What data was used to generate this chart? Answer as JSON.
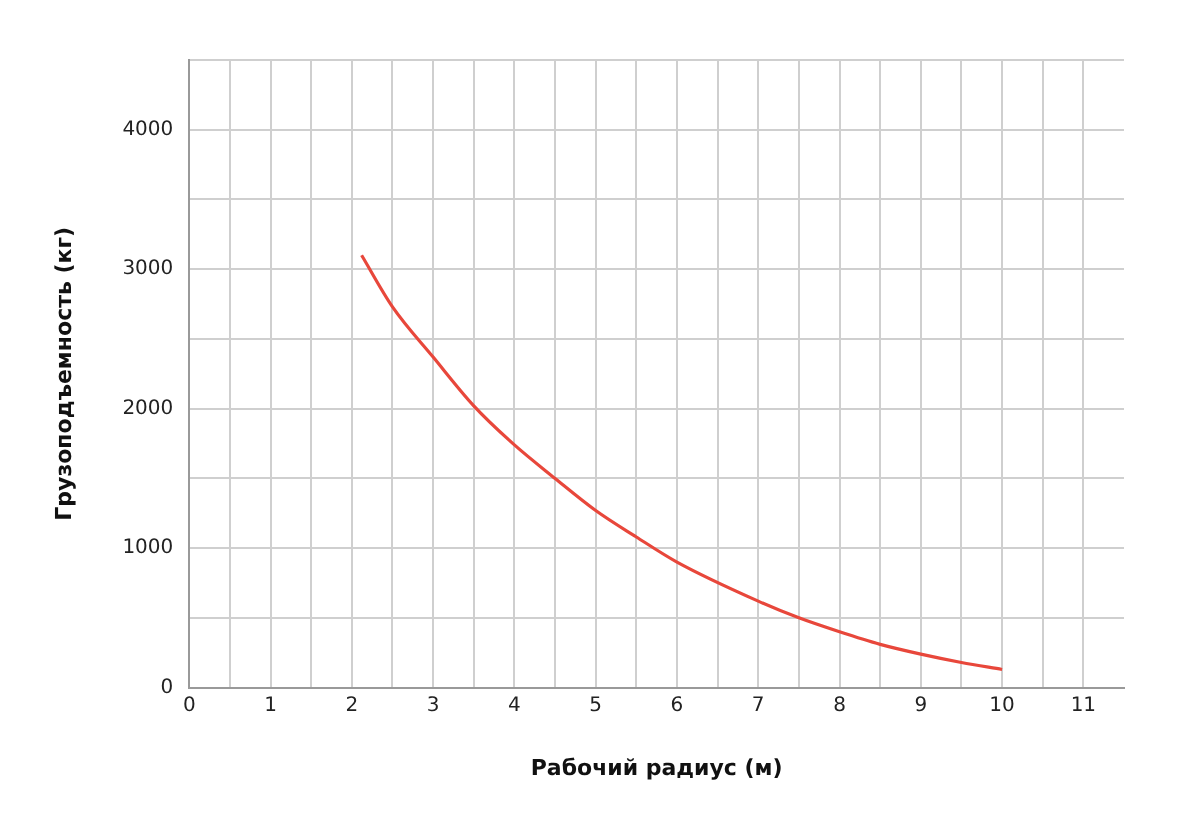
{
  "chart_data": {
    "type": "line",
    "xlabel": "Рабочий радиус (м)",
    "ylabel": "Грузоподъемность (кг)",
    "x": [
      2.12,
      2.5,
      3,
      3.5,
      4,
      4.5,
      5,
      5.5,
      6,
      7,
      7.5,
      8,
      8.5,
      9,
      9.5,
      10
    ],
    "series": [
      {
        "color": "#e8473b",
        "values": [
          3100,
          2730,
          2370,
          2020,
          1740,
          1500,
          1270,
          1080,
          900,
          620,
          500,
          400,
          310,
          240,
          180,
          130
        ]
      }
    ],
    "xlim": [
      0,
      11.5
    ],
    "xticks": [
      0,
      {
        "value": 0.5,
        "label": null
      },
      1,
      {
        "value": 1.5,
        "label": null
      },
      2,
      {
        "value": 2.5,
        "label": null
      },
      3,
      {
        "value": 3.5,
        "label": null
      },
      4,
      {
        "value": 4.5,
        "label": null
      },
      5,
      {
        "value": 5.5,
        "label": null
      },
      6,
      {
        "value": 6.5,
        "label": null
      },
      7,
      {
        "value": 7.5,
        "label": null
      },
      8,
      {
        "value": 8.5,
        "label": null
      },
      9,
      {
        "value": 9.5,
        "label": null
      },
      10,
      {
        "value": 10.5,
        "label": null
      },
      11
    ],
    "ylim": [
      0,
      4500
    ],
    "yticks": [
      0,
      {
        "value": 500,
        "label": null
      },
      1000,
      {
        "value": 1500,
        "label": null
      },
      2000,
      {
        "value": 2500,
        "label": null
      },
      3000,
      {
        "value": 3500,
        "label": null
      },
      4000,
      {
        "value": 4500,
        "label": null
      }
    ],
    "grid": true,
    "marker": "none",
    "line_style": "solid"
  }
}
